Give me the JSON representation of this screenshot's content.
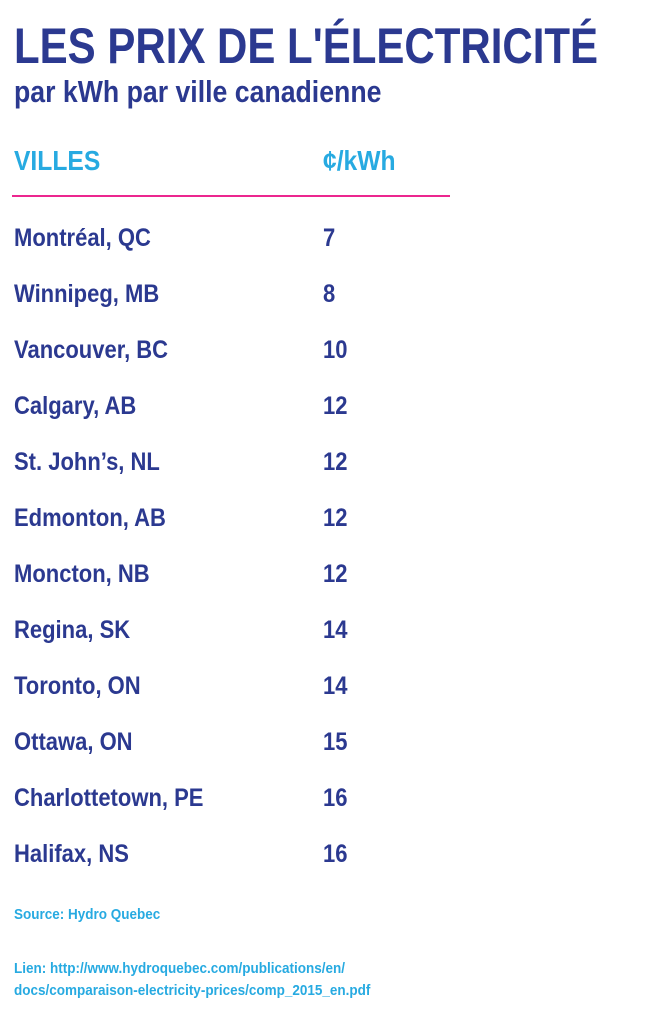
{
  "colors": {
    "primary": "#2b3990",
    "accent": "#27aae1",
    "rule": "#ec268f"
  },
  "chart_data": {
    "type": "table",
    "title": "LES PRIX DE L'ÉLECTRICITÉ",
    "subtitle": "par kWh par ville canadienne",
    "columns": [
      "VILLES",
      "¢/kWh"
    ],
    "rows": [
      {
        "city": "Montréal, QC",
        "price": "7"
      },
      {
        "city": "Winnipeg, MB",
        "price": "8"
      },
      {
        "city": "Vancouver, BC",
        "price": "10"
      },
      {
        "city": "Calgary, AB",
        "price": "12"
      },
      {
        "city": "St. John’s, NL",
        "price": "12"
      },
      {
        "city": "Edmonton, AB",
        "price": "12"
      },
      {
        "city": "Moncton, NB",
        "price": "12"
      },
      {
        "city": "Regina, SK",
        "price": "14"
      },
      {
        "city": "Toronto, ON",
        "price": "14"
      },
      {
        "city": "Ottawa, ON",
        "price": "15"
      },
      {
        "city": "Charlottetown, PE",
        "price": "16"
      },
      {
        "city": "Halifax, NS",
        "price": "16"
      }
    ]
  },
  "footer": {
    "source": "Source: Hydro Quebec",
    "link_line1": "Lien: http://www.hydroquebec.com/publications/en/",
    "link_line2": "docs/comparaison-electricity-prices/comp_2015_en.pdf"
  }
}
